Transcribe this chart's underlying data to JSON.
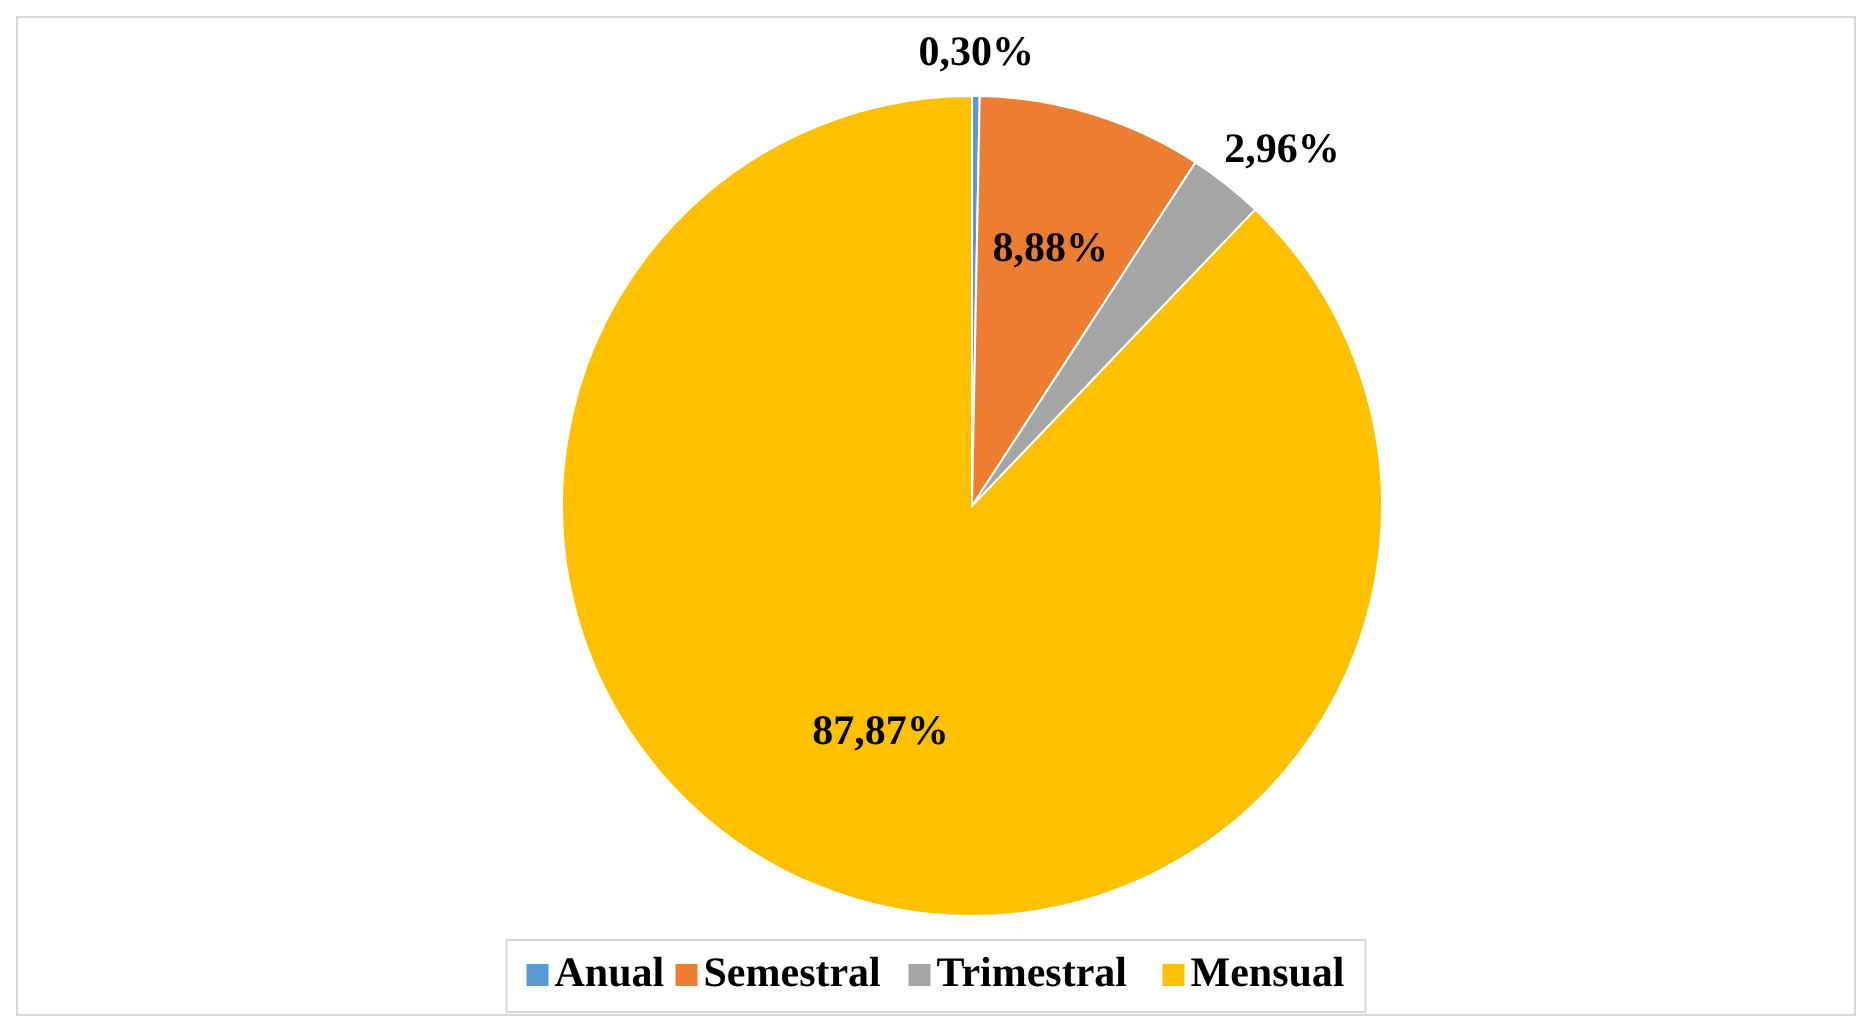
{
  "chart_data": {
    "type": "pie",
    "categories": [
      "Anual",
      "Semestral",
      "Trimestral",
      "Mensual"
    ],
    "values": [
      0.3,
      8.88,
      2.96,
      87.87
    ],
    "value_labels": [
      "0,30%",
      "8,88%",
      "2,96%",
      "87,87%"
    ],
    "colors": [
      "#5b9bd5",
      "#ed7d31",
      "#a5a5a5",
      "#ffc000"
    ],
    "legend": "bottom"
  }
}
